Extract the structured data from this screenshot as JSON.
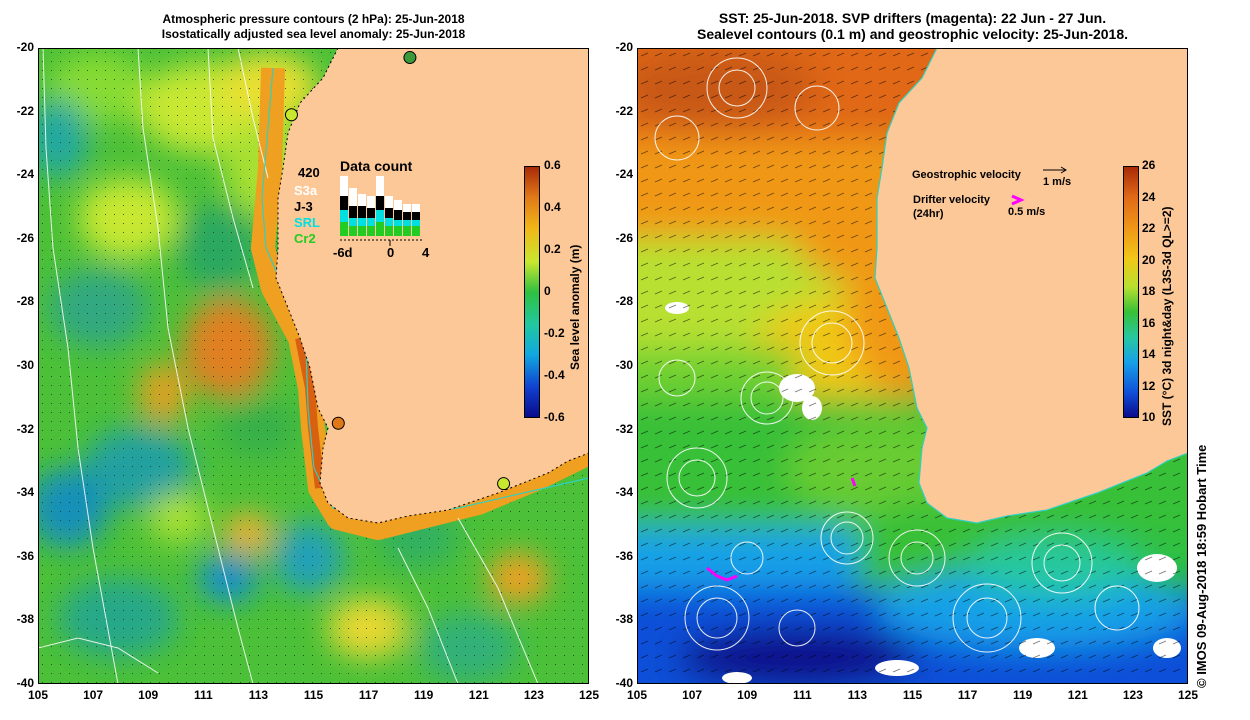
{
  "left_panel": {
    "title_line1": "Atmospheric pressure contours (2 hPa): 25-Jun-2018",
    "title_line2": "Isostatically adjusted sea level anomaly: 25-Jun-2018",
    "colorbar": {
      "label": "Sea level anomaly (m)",
      "ticks": [
        "0.6",
        "0.4",
        "0.2",
        "0",
        "-0.2",
        "-0.4",
        "-0.6"
      ]
    },
    "data_count": {
      "title": "Data count",
      "max_label": "420",
      "satellites": [
        {
          "name": "S3a",
          "color": "#ffffff"
        },
        {
          "name": "J-3",
          "color": "#000000"
        },
        {
          "name": "SRL",
          "color": "#00e0e0"
        },
        {
          "name": "Cr2",
          "color": "#22cc22"
        }
      ],
      "x_ticks": [
        "-6d",
        "0",
        "4"
      ]
    },
    "tide_gauges": [
      {
        "name": "gauge-1",
        "lon": 118.5,
        "lat": -20.3,
        "fill": "#3a9a3a"
      },
      {
        "name": "gauge-2",
        "lon": 114.2,
        "lat": -22.1,
        "fill": "#c8e830"
      },
      {
        "name": "gauge-3",
        "lon": 115.9,
        "lat": -31.8,
        "fill": "#e07818"
      },
      {
        "name": "gauge-4",
        "lon": 121.9,
        "lat": -33.7,
        "fill": "#c8e830"
      }
    ]
  },
  "right_panel": {
    "title_line1": "SST: 25-Jun-2018. SVP drifters (magenta): 22 Jun - 27 Jun.",
    "title_line2": "Sealevel contours (0.1 m) and geostrophic velocity: 25-Jun-2018.",
    "colorbar": {
      "label": "SST (°C) 3d night&day (L3S-3d QL>=2)",
      "ticks": [
        "26",
        "24",
        "22",
        "20",
        "18",
        "16",
        "14",
        "12",
        "10"
      ]
    },
    "legend": {
      "geostrophic_label": "Geostrophic velocity",
      "geostrophic_scale": "1 m/s",
      "drifter_label": "Drifter velocity",
      "drifter_sub": "(24hr)",
      "drifter_scale": "0.5 m/s"
    },
    "credit": "© IMOS 09-Aug-2018 18:59 Hobart Time"
  },
  "axes": {
    "x_ticks": [
      "105",
      "107",
      "109",
      "111",
      "113",
      "115",
      "117",
      "119",
      "121",
      "123",
      "125"
    ],
    "y_ticks": [
      "-20",
      "-22",
      "-24",
      "-26",
      "-28",
      "-30",
      "-32",
      "-34",
      "-36",
      "-38",
      "-40"
    ],
    "lon_range": [
      105,
      125
    ],
    "lat_range": [
      -40,
      -20
    ]
  },
  "colors": {
    "land": "#fcc898",
    "sla_scale": [
      "#0a0a8a",
      "#1040d0",
      "#10a8e0",
      "#20c8a0",
      "#30c040",
      "#c8e830",
      "#f0b818",
      "#e07818",
      "#a82808"
    ],
    "sst_scale": [
      "#0a0a8a",
      "#1050d8",
      "#18a0e8",
      "#28c8a0",
      "#38c038",
      "#b8e030",
      "#f0c818",
      "#f09818",
      "#e06818",
      "#a82808"
    ]
  }
}
